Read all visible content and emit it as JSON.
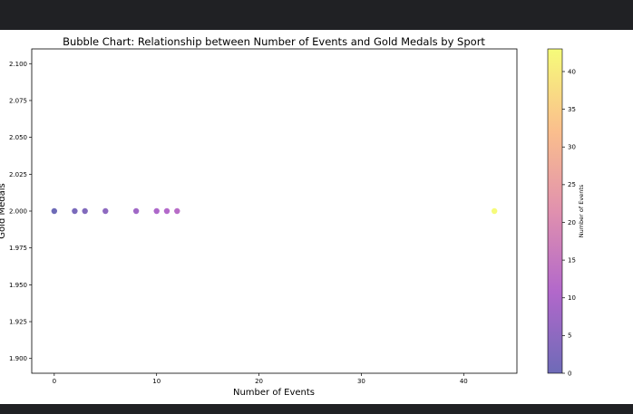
{
  "colors": {
    "window_bar": "#202124",
    "plot_background": "#ffffff",
    "colormap_stops": [
      "#0d0887",
      "#7e03a8",
      "#cc4778",
      "#f89540",
      "#f0f921"
    ],
    "point_alpha": 0.6
  },
  "chart_data": {
    "type": "scatter",
    "title": "Bubble Chart: Relationship between Number of Events and Gold Medals by Sport",
    "xlabel": "Number of Events",
    "ylabel": "Gold Medals",
    "xlim": [
      -2.2,
      45.2
    ],
    "ylim": [
      1.89,
      2.11
    ],
    "xticks": [
      0,
      10,
      20,
      30,
      40
    ],
    "yticks": [
      1.9,
      1.925,
      1.95,
      1.975,
      2.0,
      2.025,
      2.05,
      2.075,
      2.1
    ],
    "ytick_labels": [
      "1.900",
      "1.925",
      "1.950",
      "1.975",
      "2.000",
      "2.025",
      "2.050",
      "2.075",
      "2.100"
    ],
    "grid": false,
    "colormap": "plasma",
    "color_by": "x",
    "points": [
      {
        "x": 0,
        "y": 2.0
      },
      {
        "x": 2,
        "y": 2.0
      },
      {
        "x": 3,
        "y": 2.0
      },
      {
        "x": 5,
        "y": 2.0
      },
      {
        "x": 8,
        "y": 2.0
      },
      {
        "x": 10,
        "y": 2.0
      },
      {
        "x": 11,
        "y": 2.0
      },
      {
        "x": 12,
        "y": 2.0
      },
      {
        "x": 43,
        "y": 2.0
      }
    ],
    "colorbar": {
      "label": "Number of Events",
      "range": [
        0,
        43
      ],
      "ticks": [
        0,
        5,
        10,
        15,
        20,
        25,
        30,
        35,
        40
      ]
    }
  }
}
